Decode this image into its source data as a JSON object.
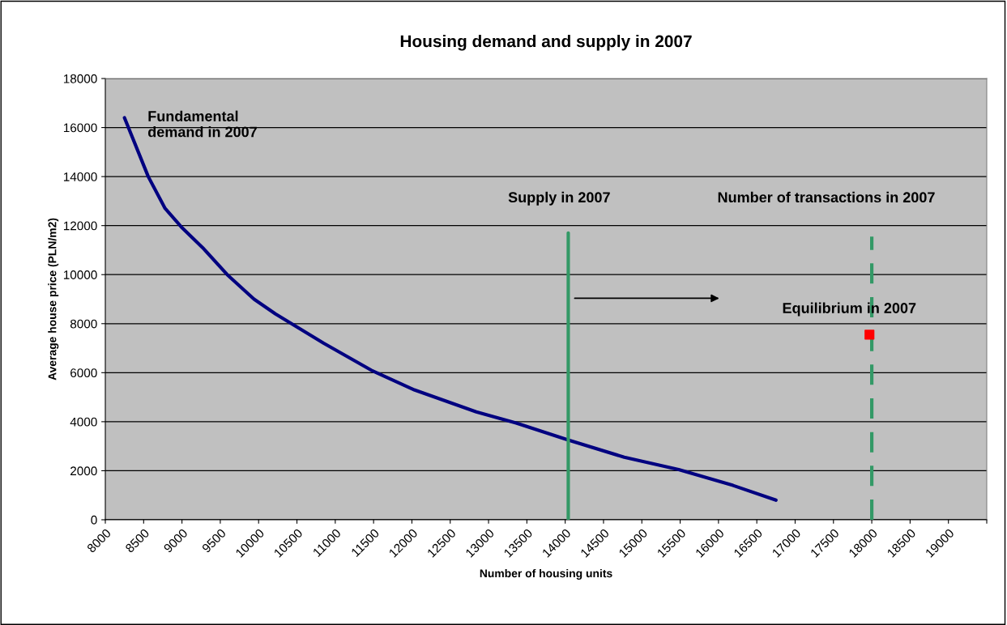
{
  "chart_data": {
    "type": "line",
    "title": "Housing demand and supply in 2007",
    "xlabel": "Number of housing units",
    "ylabel": "Average house price (PLN/m2)",
    "xlim": [
      8000,
      19500
    ],
    "xticks": [
      8000,
      8500,
      9000,
      9500,
      10000,
      10500,
      11000,
      11500,
      12000,
      12500,
      13000,
      13500,
      14000,
      14500,
      15000,
      15500,
      16000,
      16500,
      17000,
      17500,
      18000,
      18500,
      19000,
      {
        "value": 19500,
        "label": null
      }
    ],
    "ylim": [
      0,
      18000
    ],
    "yticks": [
      0,
      2000,
      4000,
      6000,
      8000,
      10000,
      12000,
      14000,
      16000,
      18000
    ],
    "grid": "y",
    "series": [
      {
        "color": "#000080",
        "x": [
          8250,
          8560,
          8780,
          8990,
          9270,
          9590,
          9940,
          10220,
          10850,
          11470,
          12030,
          12840,
          13360,
          14040,
          14770,
          15480,
          16190,
          16750
        ],
        "values": [
          16400,
          14000,
          12700,
          11950,
          11100,
          10000,
          9000,
          8400,
          7200,
          6100,
          5300,
          4400,
          3950,
          3250,
          2550,
          2050,
          1400,
          800
        ]
      },
      {
        "color": "#339966",
        "line_style": "solid",
        "x": [
          14040,
          14040
        ],
        "values": [
          0,
          11700
        ]
      },
      {
        "color": "#339966",
        "line_style": "dashed",
        "x": [
          18000,
          18000
        ],
        "values": [
          0,
          11550
        ]
      },
      {
        "type": "scatter",
        "color": "#ff0000",
        "marker": "square",
        "x": [
          17970
        ],
        "values": [
          7550
        ]
      }
    ],
    "annotations": [
      "Fundamental\ndemand in 2007",
      "Supply in 2007",
      "Number of transactions in 2007",
      "Equilibrium in 2007"
    ]
  }
}
